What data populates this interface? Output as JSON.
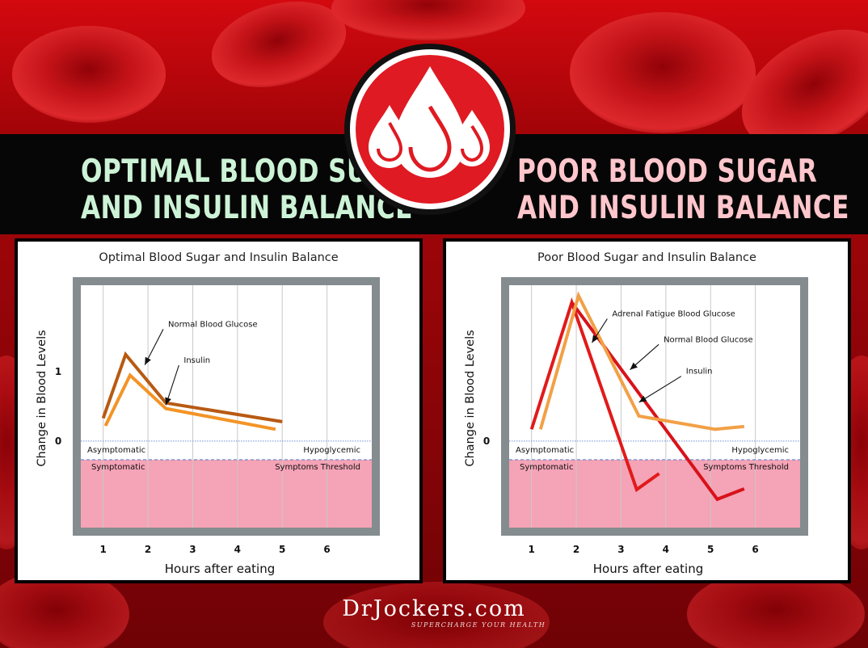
{
  "headlines": {
    "left": [
      "OPTIMAL BLOOD SUGAR",
      "AND INSULIN BALANCE"
    ],
    "right": [
      "POOR BLOOD SUGAR",
      "AND INSULIN BALANCE"
    ]
  },
  "brand": {
    "name": "DrJockers.com",
    "tagline": "SUPERCHARGE YOUR HEALTH"
  },
  "colors": {
    "background_red": "#c4080d",
    "band": "#060606",
    "left_headline": "#cdf3d6",
    "right_headline": "#ffc6cc",
    "symptom_zone": "#f5a3b6",
    "frame": "#858c8f"
  },
  "chart_data": [
    {
      "type": "line",
      "title": "Optimal Blood Sugar and Insulin Balance",
      "xlabel": "Hours after eating",
      "ylabel": "Change in Blood Levels",
      "xticks": [
        1,
        2,
        3,
        4,
        5,
        6
      ],
      "yticks": [
        {
          "value": 0,
          "label": "0"
        },
        {
          "value": 1,
          "label": "1"
        }
      ],
      "xlim": [
        0.5,
        7.0
      ],
      "ylim": [
        -1.25,
        2.25
      ],
      "grid": "vertical",
      "hypoglycemic_line": -0.27,
      "series": [
        {
          "name": "Normal Blood Glucose",
          "color": "#b85a12",
          "x": [
            1.0,
            1.5,
            2.4,
            5.0
          ],
          "y": [
            0.33,
            1.25,
            0.55,
            0.28
          ]
        },
        {
          "name": "Insulin",
          "color": "#f39426",
          "x": [
            1.05,
            1.6,
            2.4,
            4.85
          ],
          "y": [
            0.22,
            0.95,
            0.47,
            0.17
          ]
        }
      ],
      "annotations": [
        {
          "text": "Normal Blood Glucose",
          "x": 2.45,
          "y": 1.65,
          "arrow_to": [
            1.93,
            1.1
          ]
        },
        {
          "text": "Insulin",
          "x": 2.8,
          "y": 1.13,
          "arrow_to": [
            2.4,
            0.52
          ]
        }
      ],
      "zone_labels": {
        "left_top": "Asymptomatic",
        "left_bottom": "Symptomatic",
        "right_top": "Hypoglycemic",
        "right_bottom": "Symptoms Threshold"
      }
    },
    {
      "type": "line",
      "title": "Poor Blood Sugar and Insulin Balance",
      "xlabel": "Hours after eating",
      "ylabel": "Change in Blood Levels",
      "xticks": [
        1,
        2,
        3,
        4,
        5,
        6
      ],
      "yticks": [
        {
          "value": 0,
          "label": "0"
        }
      ],
      "xlim": [
        0.5,
        7.0
      ],
      "ylim": [
        -1.25,
        2.25
      ],
      "grid": "vertical",
      "hypoglycemic_line": -0.27,
      "series": [
        {
          "name": "Adrenal Fatigue Blood Glucose",
          "color": "#e11a1a",
          "x": [
            1.0,
            1.9,
            3.35,
            3.85
          ],
          "y": [
            0.17,
            2.0,
            -0.7,
            -0.47
          ]
        },
        {
          "name": "Normal Blood Glucose",
          "color": "#d8121a",
          "x": [
            1.9,
            5.15,
            5.75
          ],
          "y": [
            2.0,
            -0.84,
            -0.69
          ]
        },
        {
          "name": "Insulin",
          "color": "#f2a046",
          "x": [
            1.2,
            2.05,
            3.4,
            5.1,
            5.75
          ],
          "y": [
            0.17,
            2.1,
            0.36,
            0.17,
            0.21
          ]
        }
      ],
      "annotations": [
        {
          "text": "Adrenal Fatigue Blood Glucose",
          "x": 2.8,
          "y": 1.8,
          "arrow_to": [
            2.35,
            1.42
          ]
        },
        {
          "text": "Normal Blood Glucose",
          "x": 3.95,
          "y": 1.43,
          "arrow_to": [
            3.2,
            1.03
          ]
        },
        {
          "text": "Insulin",
          "x": 4.45,
          "y": 0.97,
          "arrow_to": [
            3.4,
            0.56
          ]
        }
      ],
      "zone_labels": {
        "left_top": "Asymptomatic",
        "left_bottom": "Symptomatic",
        "right_top": "Hypoglycemic",
        "right_bottom": "Symptoms Threshold"
      }
    }
  ]
}
